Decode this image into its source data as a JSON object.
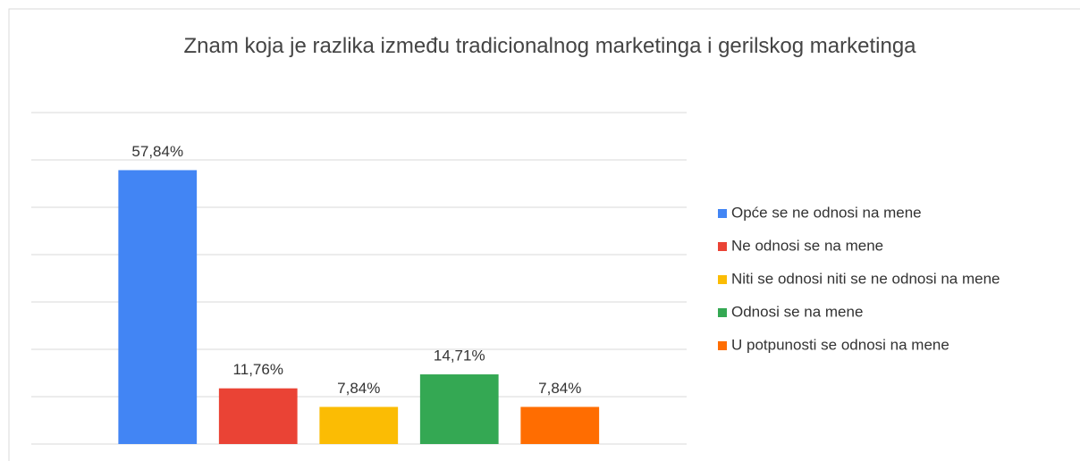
{
  "chart_data": {
    "type": "bar",
    "title": "Znam koja je razlika između tradicionalnog marketinga i gerilskog marketinga",
    "categories": [
      "Opće se ne odnosi na mene",
      "Ne odnosi se na mene",
      "Niti se odnosi niti se ne odnosi na mene",
      "Odnosi se na mene",
      "U potpunosti se odnosi na mene"
    ],
    "values": [
      57.84,
      11.76,
      7.84,
      14.71,
      7.84
    ],
    "value_labels": [
      "57,84%",
      "11,76%",
      "7,84%",
      "14,71%",
      "7,84%"
    ],
    "colors": [
      "#4285f4",
      "#ea4335",
      "#fbbc04",
      "#34a853",
      "#ff6d01"
    ],
    "ylim": [
      0,
      70
    ],
    "yticks": [
      0,
      10,
      20,
      30,
      40,
      50,
      60,
      70
    ],
    "grid": true,
    "legend": "right"
  }
}
